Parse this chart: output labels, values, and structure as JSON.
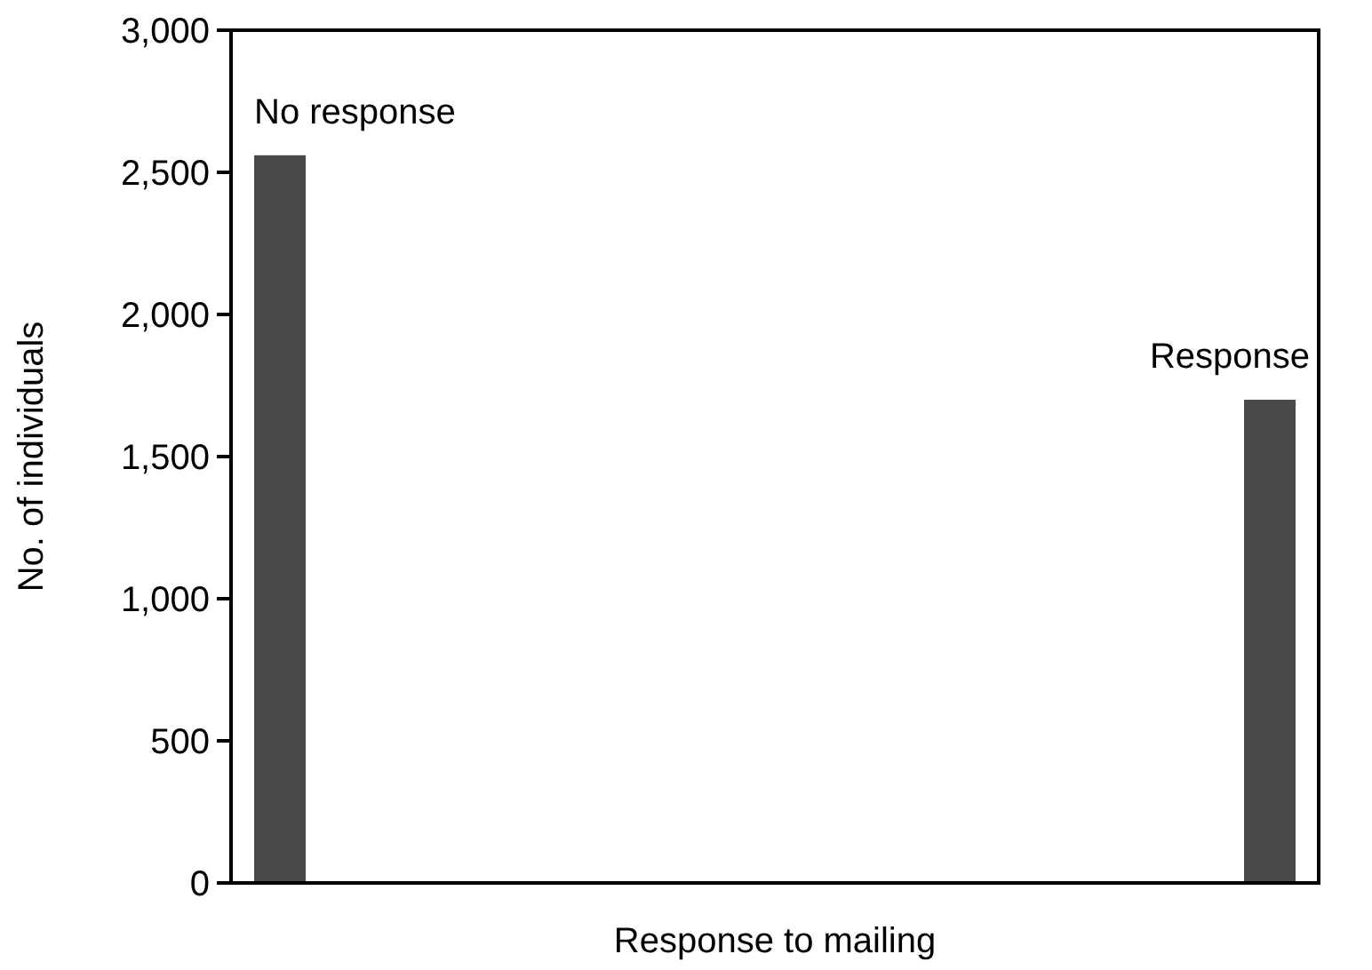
{
  "chart_data": {
    "type": "bar",
    "xlabel": "Response to mailing",
    "ylabel": "No. of individuals",
    "categories": [
      null,
      null
    ],
    "annotations": [
      "No response",
      "Response"
    ],
    "values": [
      2560,
      1700
    ],
    "color": "#4a4a4a",
    "ylim": [
      0,
      3000
    ],
    "yticks": [
      {
        "value": 0,
        "label": "0"
      },
      {
        "value": 500,
        "label": "500"
      },
      {
        "value": 1000,
        "label": "1,000"
      },
      {
        "value": 1500,
        "label": "1,500"
      },
      {
        "value": 2000,
        "label": "2,000"
      },
      {
        "value": 2500,
        "label": "2,500"
      },
      {
        "value": 3000,
        "label": "3,000"
      }
    ],
    "grid": false,
    "legend": false
  }
}
